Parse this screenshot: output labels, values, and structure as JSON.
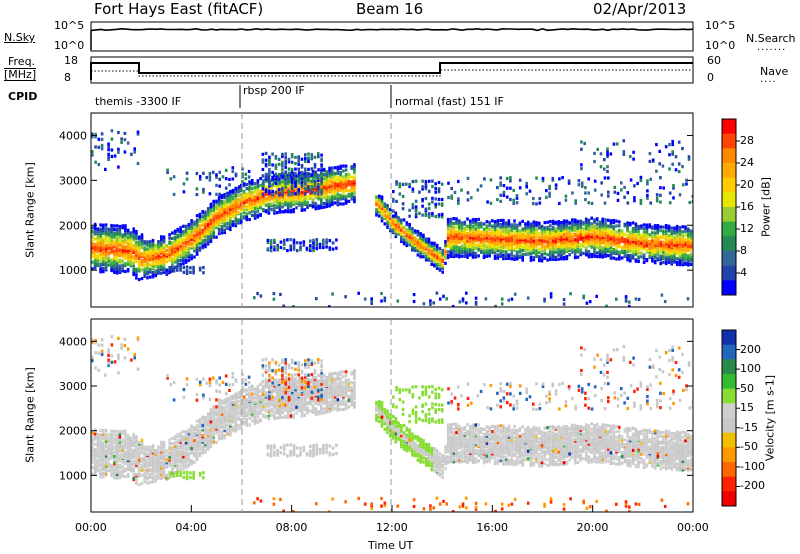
{
  "header": {
    "station": "Fort Hays East (fitACF)",
    "beam": "Beam 16",
    "date": "02/Apr/2013"
  },
  "panels": {
    "nsky_label": "N.Sky",
    "nsky_ticks": [
      "10^5",
      "10^0"
    ],
    "nsearch_label": "N.Search",
    "nsearch_ticks": [
      "10^5",
      "10^0"
    ],
    "freq_label_1": "Freq.",
    "freq_label_2": "[MHz]",
    "freq_ticks": [
      "18",
      "8"
    ],
    "nave_label": "Nave",
    "nave_ticks": [
      "60",
      "0"
    ],
    "cpid_label": "CPID",
    "cpid_segments": [
      {
        "text": "themis -3300 IF",
        "start_h": 0,
        "end_h": 6
      },
      {
        "text": "rbsp 200 IF",
        "start_h": 6,
        "end_h": 12
      },
      {
        "text": "normal (fast) 151 IF",
        "start_h": 12,
        "end_h": 24
      }
    ]
  },
  "xaxis": {
    "label": "Time UT",
    "ticks": [
      "00:00",
      "04:00",
      "08:00",
      "12:00",
      "16:00",
      "20:00",
      "00:00"
    ]
  },
  "chart_data": [
    {
      "type": "heatmap",
      "title": "",
      "xlabel": "Time UT",
      "ylabel": "Slant Range [km]",
      "xlim_hours": [
        0,
        24
      ],
      "ylim_km": [
        180,
        4500
      ],
      "yticks": [
        "1000",
        "2000",
        "3000",
        "4000"
      ],
      "colorbar": {
        "label": "Power [dB]",
        "ticks": [
          "28",
          "24",
          "20",
          "16",
          "12",
          "8",
          "4"
        ],
        "colors": [
          "#ff0000",
          "#ff4400",
          "#ff8800",
          "#ffaa00",
          "#ffcc00",
          "#e6e600",
          "#99cc33",
          "#33aa44",
          "#228855",
          "#336699",
          "#2244aa",
          "#0000ff"
        ]
      },
      "bands": [
        {
          "name": "main",
          "points": [
            [
              0,
              1500
            ],
            [
              1.5,
              1450
            ],
            [
              2,
              1250
            ],
            [
              3,
              1350
            ],
            [
              4,
              1700
            ],
            [
              5,
              2200
            ],
            [
              6,
              2500
            ],
            [
              7,
              2700
            ],
            [
              8.2,
              2750
            ],
            [
              10.5,
              2950
            ],
            [
              11.5,
              2400
            ],
            [
              12,
              2050
            ],
            [
              13,
              1600
            ],
            [
              14,
              1200
            ],
            [
              14.2,
              1750
            ],
            [
              16,
              1700
            ],
            [
              18,
              1650
            ],
            [
              20,
              1750
            ],
            [
              22,
              1600
            ],
            [
              24,
              1550
            ]
          ]
        }
      ]
    },
    {
      "type": "heatmap",
      "title": "",
      "xlabel": "Time UT",
      "ylabel": "Slant Range [km]",
      "xlim_hours": [
        0,
        24
      ],
      "ylim_km": [
        180,
        4500
      ],
      "yticks": [
        "1000",
        "2000",
        "3000",
        "4000"
      ],
      "colorbar": {
        "label": "Velocity [m s-1]",
        "ticks": [
          "200",
          "100",
          "50",
          "15",
          "-15",
          "-50",
          "-100",
          "-200"
        ],
        "colors": [
          "#1030b0",
          "#2266bb",
          "#2a8a4a",
          "#33bb33",
          "#88dd33",
          "#cfcfcf",
          "#c8c8c8",
          "#f0c000",
          "#ff9900",
          "#ff6600",
          "#ff2200",
          "#ee0000"
        ]
      }
    }
  ]
}
